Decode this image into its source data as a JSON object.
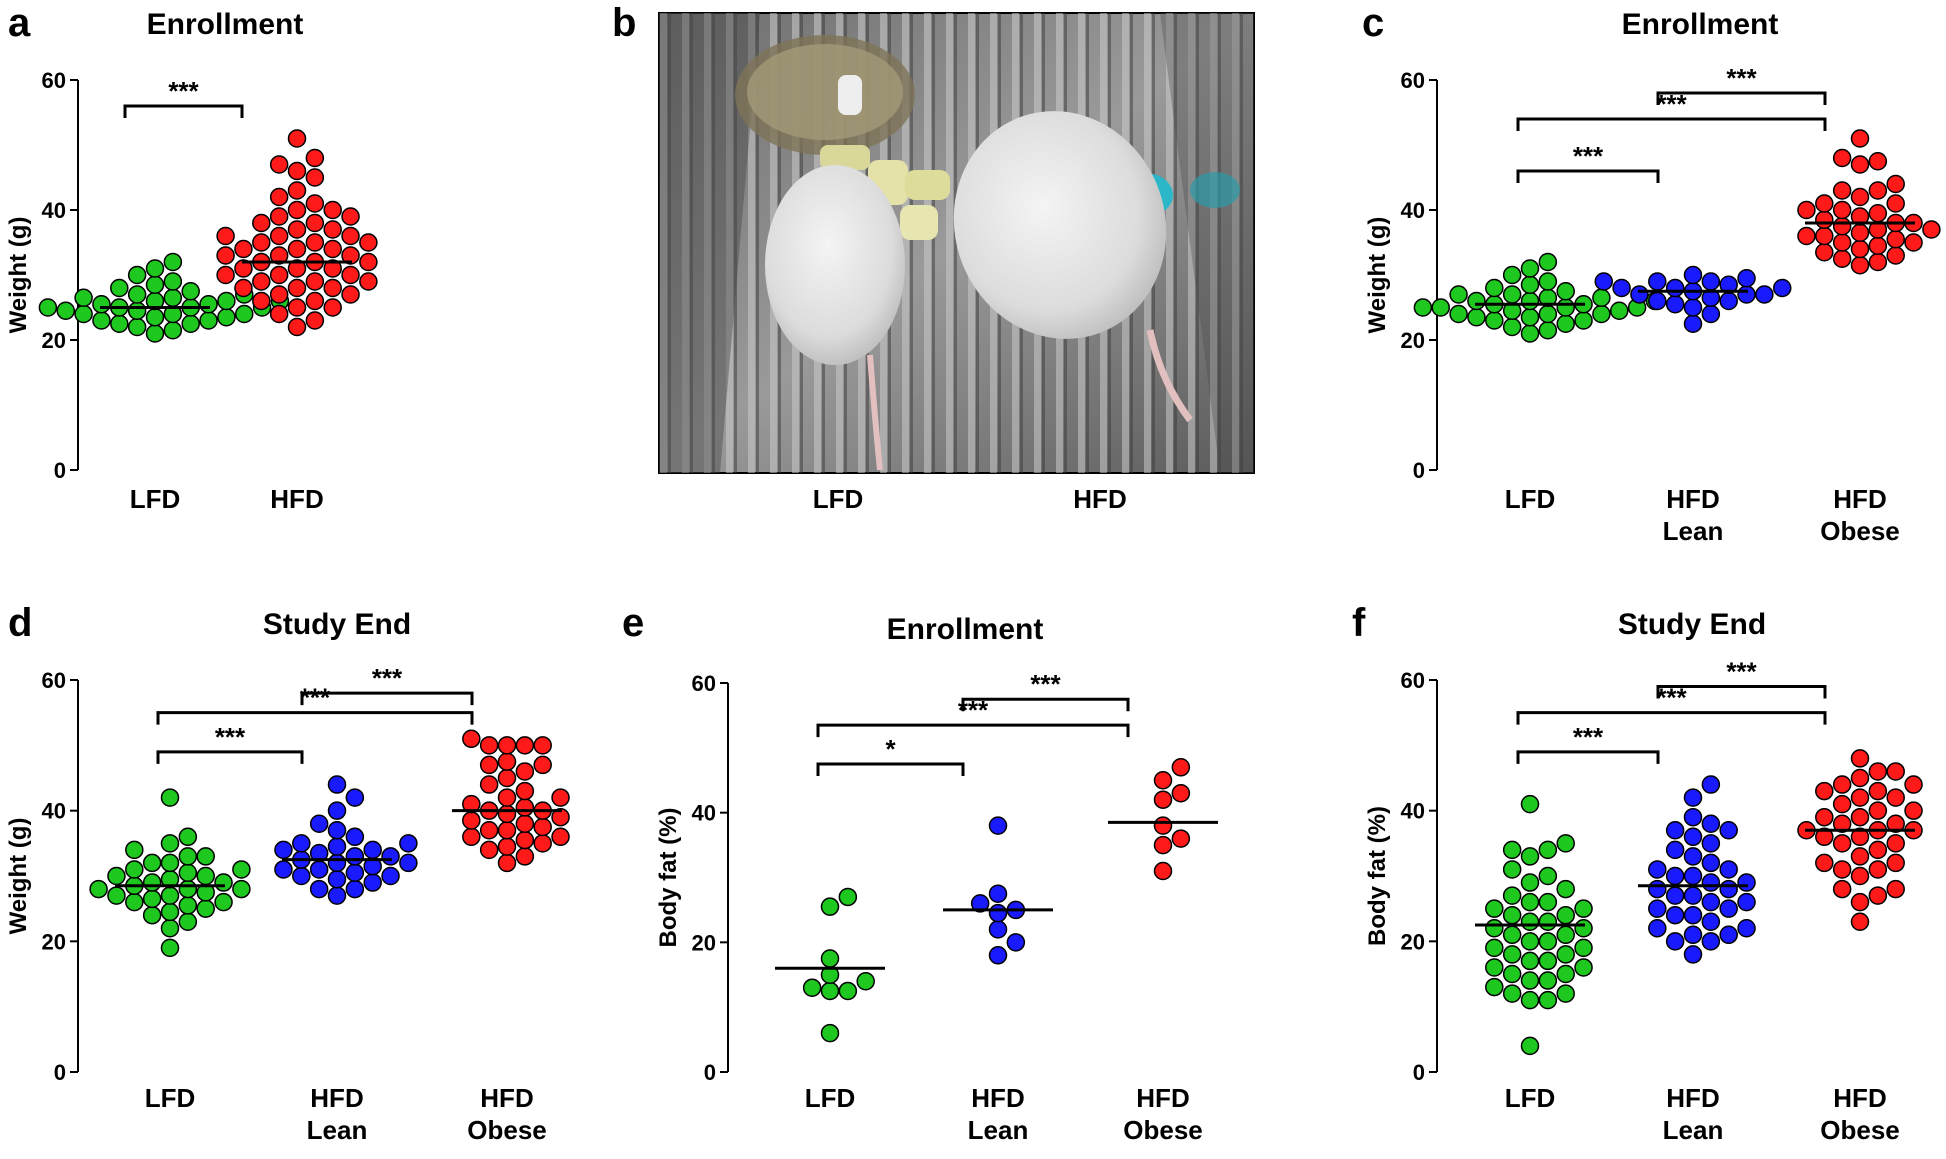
{
  "panels": [
    {
      "letter": "a",
      "title": "Enrollment",
      "ylabel": "Weight (g)"
    },
    {
      "letter": "b",
      "title": ""
    },
    {
      "letter": "c",
      "title": "Enrollment",
      "ylabel": "Weight (g)"
    },
    {
      "letter": "d",
      "title": "Study End",
      "ylabel": "Weight (g)"
    },
    {
      "letter": "e",
      "title": "Enrollment",
      "ylabel": "Body fat (%)"
    },
    {
      "letter": "f",
      "title": "Study End",
      "ylabel": "Body fat (%)"
    }
  ],
  "photo": {
    "labels": [
      "LFD",
      "HFD"
    ],
    "description_icon": "mouse-cage-photo"
  },
  "colors": {
    "LFD": "#1ec81e",
    "HFD Lean": "#1a1aff",
    "HFD Obese": "#ff1a1a",
    "HFD": "#ff1a1a"
  },
  "chart_data": [
    {
      "panel": "a",
      "type": "scatter",
      "title": "Enrollment",
      "ylabel": "Weight (g)",
      "ylim": [
        0,
        60
      ],
      "yticks": [
        0,
        20,
        40,
        60
      ],
      "categories": [
        "LFD",
        "HFD"
      ],
      "series": [
        {
          "name": "LFD",
          "color": "#1ec81e",
          "mean": 25,
          "values": [
            21,
            21.5,
            22,
            22.5,
            22.5,
            23,
            23,
            23.5,
            23.5,
            24,
            24,
            24,
            24.5,
            24.5,
            25,
            25,
            25,
            25,
            25.5,
            25.5,
            26,
            26,
            26,
            26.5,
            26.5,
            27,
            27,
            27.5,
            28,
            28.5,
            29,
            30,
            31,
            32
          ]
        },
        {
          "name": "HFD",
          "color": "#ff1a1a",
          "mean": 32,
          "values": [
            22,
            23,
            24,
            25,
            25,
            26,
            26,
            27,
            27,
            28,
            28,
            28,
            29,
            29,
            29,
            30,
            30,
            30,
            31,
            31,
            31,
            32,
            32,
            32,
            33,
            33,
            33,
            34,
            34,
            34,
            35,
            35,
            35,
            36,
            36,
            36,
            37,
            37,
            38,
            38,
            39,
            39,
            40,
            40,
            41,
            42,
            43,
            45,
            46,
            47,
            48,
            51
          ]
        }
      ],
      "significance": [
        {
          "from": "LFD",
          "to": "HFD",
          "label": "***"
        }
      ]
    },
    {
      "panel": "c",
      "type": "scatter",
      "title": "Enrollment",
      "ylabel": "Weight (g)",
      "ylim": [
        0,
        60
      ],
      "yticks": [
        0,
        20,
        40,
        60
      ],
      "categories": [
        "LFD",
        "HFD\nLean",
        "HFD\nObese"
      ],
      "series": [
        {
          "name": "LFD",
          "color": "#1ec81e",
          "mean": 25.5,
          "values": [
            21,
            21.5,
            22,
            22.5,
            23,
            23,
            23.5,
            23.5,
            24,
            24,
            24,
            24.5,
            24.5,
            25,
            25,
            25,
            25,
            25.5,
            25.5,
            26,
            26,
            26,
            26.5,
            26.5,
            27,
            27,
            27.5,
            28,
            28.5,
            29,
            30,
            31,
            32
          ]
        },
        {
          "name": "HFD Lean",
          "color": "#1a1aff",
          "mean": 27.5,
          "values": [
            22.5,
            24,
            25,
            25.5,
            26,
            26,
            26.5,
            27,
            27,
            27,
            27.5,
            28,
            28,
            28,
            28.5,
            29,
            29,
            29,
            29.5,
            30
          ]
        },
        {
          "name": "HFD Obese",
          "color": "#ff1a1a",
          "mean": 38,
          "values": [
            31.5,
            32,
            32.5,
            33,
            33.5,
            34,
            34.5,
            35,
            35,
            35.5,
            36,
            36,
            36.5,
            37,
            37,
            37.5,
            38,
            38,
            38.5,
            39,
            39.5,
            40,
            40,
            41,
            41,
            42,
            43,
            43,
            44,
            47,
            47.5,
            48,
            51
          ]
        }
      ],
      "significance": [
        {
          "from": "HFD\nLean",
          "to": "HFD\nObese",
          "label": "***"
        },
        {
          "from": "LFD",
          "to": "HFD\nObese",
          "label": "***"
        },
        {
          "from": "LFD",
          "to": "HFD\nLean",
          "label": "***"
        }
      ]
    },
    {
      "panel": "d",
      "type": "scatter",
      "title": "Study End",
      "ylabel": "Weight (g)",
      "ylim": [
        0,
        60
      ],
      "yticks": [
        0,
        20,
        40,
        60
      ],
      "categories": [
        "LFD",
        "HFD\nLean",
        "HFD\nObese"
      ],
      "series": [
        {
          "name": "LFD",
          "color": "#1ec81e",
          "mean": 28.5,
          "values": [
            19,
            22,
            23,
            24,
            24.5,
            25,
            25.5,
            26,
            26,
            26.5,
            27,
            27,
            27.5,
            28,
            28,
            28,
            28.5,
            29,
            29,
            29.5,
            30,
            30,
            30.5,
            31,
            31,
            32,
            32,
            33,
            33,
            34,
            35,
            36,
            42
          ]
        },
        {
          "name": "HFD Lean",
          "color": "#1a1aff",
          "mean": 32.5,
          "values": [
            27,
            28,
            28,
            29,
            29.5,
            30,
            30,
            30.5,
            31,
            31,
            31.5,
            32,
            32,
            32.5,
            33,
            33,
            33.5,
            34,
            34,
            34.5,
            35,
            35,
            36,
            37,
            38,
            40,
            42,
            44
          ]
        },
        {
          "name": "HFD Obese",
          "color": "#ff1a1a",
          "mean": 40,
          "values": [
            32,
            33,
            34,
            34.5,
            35,
            35.5,
            36,
            36,
            37,
            37,
            37.5,
            38,
            38.5,
            39,
            39.5,
            40,
            40,
            40.5,
            41,
            42,
            42,
            43,
            44,
            45,
            46,
            47,
            47,
            47.5,
            50,
            50,
            50,
            50,
            51
          ]
        }
      ],
      "significance": [
        {
          "from": "HFD\nLean",
          "to": "HFD\nObese",
          "label": "***"
        },
        {
          "from": "LFD",
          "to": "HFD\nObese",
          "label": "***"
        },
        {
          "from": "LFD",
          "to": "HFD\nLean",
          "label": "***"
        }
      ]
    },
    {
      "panel": "e",
      "type": "scatter",
      "title": "Enrollment",
      "ylabel": "Body fat (%)",
      "ylim": [
        0,
        60
      ],
      "yticks": [
        0,
        20,
        40,
        60
      ],
      "categories": [
        "LFD",
        "HFD\nLean",
        "HFD\nObese"
      ],
      "series": [
        {
          "name": "LFD",
          "color": "#1ec81e",
          "mean": 16,
          "values": [
            6,
            12.5,
            12.5,
            13,
            14,
            15,
            17.5,
            25.5,
            27
          ]
        },
        {
          "name": "HFD Lean",
          "color": "#1a1aff",
          "mean": 25,
          "values": [
            18,
            20,
            22,
            24.5,
            25,
            26,
            27.5,
            38
          ]
        },
        {
          "name": "HFD Obese",
          "color": "#ff1a1a",
          "mean": 38.5,
          "values": [
            31,
            35,
            36,
            38,
            42,
            43,
            45,
            47
          ]
        }
      ],
      "significance": [
        {
          "from": "HFD\nLean",
          "to": "HFD\nObese",
          "label": "***"
        },
        {
          "from": "LFD",
          "to": "HFD\nObese",
          "label": "***"
        },
        {
          "from": "LFD",
          "to": "HFD\nLean",
          "label": "*"
        }
      ]
    },
    {
      "panel": "f",
      "type": "scatter",
      "title": "Study End",
      "ylabel": "Body fat (%)",
      "ylim": [
        0,
        60
      ],
      "yticks": [
        0,
        20,
        40,
        60
      ],
      "categories": [
        "LFD",
        "HFD\nLean",
        "HFD\nObese"
      ],
      "series": [
        {
          "name": "LFD",
          "color": "#1ec81e",
          "mean": 22.5,
          "values": [
            4,
            11,
            11,
            12,
            12,
            13,
            14,
            14,
            15,
            15,
            16,
            16,
            17,
            17,
            18,
            18,
            19,
            19,
            20,
            20,
            21,
            21,
            22,
            22,
            23,
            23,
            24,
            24,
            25,
            25,
            26,
            26,
            27,
            28,
            29,
            30,
            31,
            33,
            34,
            34,
            35,
            41
          ]
        },
        {
          "name": "HFD Lean",
          "color": "#1a1aff",
          "mean": 28.5,
          "values": [
            18,
            20,
            20,
            21,
            21,
            22,
            22,
            23,
            24,
            24,
            25,
            25,
            26,
            26,
            27,
            27,
            28,
            28,
            29,
            29,
            30,
            30,
            31,
            31,
            32,
            33,
            34,
            35,
            36,
            37,
            37,
            38,
            39,
            42,
            44
          ]
        },
        {
          "name": "HFD Obese",
          "color": "#ff1a1a",
          "mean": 37,
          "values": [
            23,
            26,
            27,
            28,
            28,
            30,
            31,
            31,
            32,
            32,
            33,
            34,
            35,
            35,
            36,
            36,
            37,
            37,
            37,
            38,
            38,
            39,
            39,
            40,
            40,
            41,
            42,
            42,
            43,
            43,
            44,
            44,
            45,
            46,
            46,
            48
          ]
        }
      ],
      "significance": [
        {
          "from": "HFD\nLean",
          "to": "HFD\nObese",
          "label": "***"
        },
        {
          "from": "LFD",
          "to": "HFD\nObese",
          "label": "***"
        },
        {
          "from": "LFD",
          "to": "HFD\nLean",
          "label": "***"
        }
      ]
    }
  ]
}
